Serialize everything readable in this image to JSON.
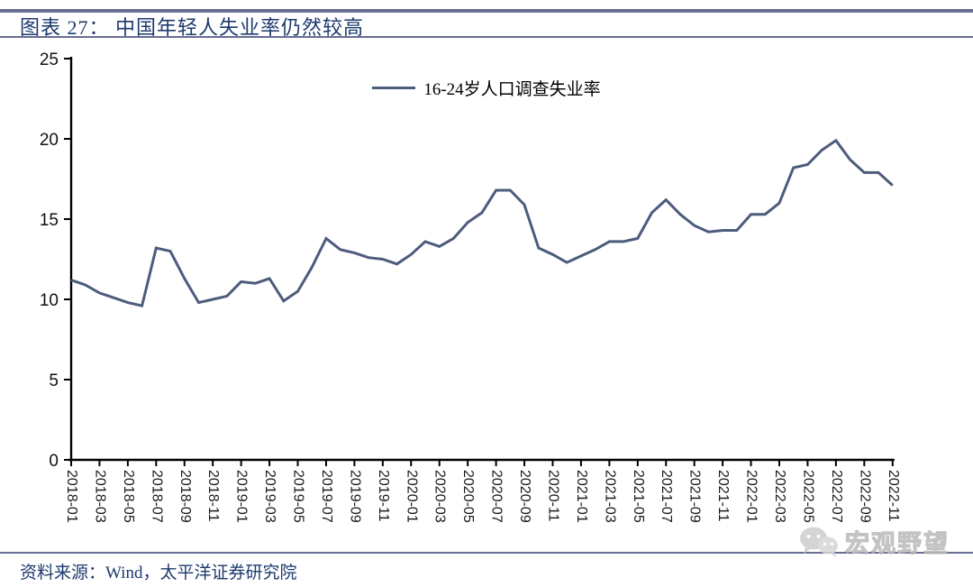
{
  "header": {
    "title": "图表 27： 中国年轻人失业率仍然较高"
  },
  "footer": {
    "source": "资料来源：Wind，太平洋证券研究院"
  },
  "watermark": {
    "icon": "wechat-icon",
    "text": "宏观野望"
  },
  "colors": {
    "title": "#1d3a6d",
    "line": "#4d5b7d",
    "rule": "#686e94",
    "axis": "#000000",
    "tick_label": "#111111",
    "watermark": "#c6c6c6"
  },
  "chart_data": {
    "type": "line",
    "title": "图表 27： 中国年轻人失业率仍然较高",
    "xlabel": "",
    "ylabel": "",
    "ylim": [
      0,
      25
    ],
    "yticks": [
      0,
      5,
      10,
      15,
      20,
      25
    ],
    "xtick_every": 2,
    "grid": false,
    "legend_position": "top-center",
    "x": [
      "2018-01",
      "2018-02",
      "2018-03",
      "2018-04",
      "2018-05",
      "2018-06",
      "2018-07",
      "2018-08",
      "2018-09",
      "2018-10",
      "2018-11",
      "2018-12",
      "2019-01",
      "2019-02",
      "2019-03",
      "2019-04",
      "2019-05",
      "2019-06",
      "2019-07",
      "2019-08",
      "2019-09",
      "2019-10",
      "2019-11",
      "2019-12",
      "2020-01",
      "2020-02",
      "2020-03",
      "2020-04",
      "2020-05",
      "2020-06",
      "2020-07",
      "2020-08",
      "2020-09",
      "2020-10",
      "2020-11",
      "2020-12",
      "2021-01",
      "2021-02",
      "2021-03",
      "2021-04",
      "2021-05",
      "2021-06",
      "2021-07",
      "2021-08",
      "2021-09",
      "2021-10",
      "2021-11",
      "2021-12",
      "2022-01",
      "2022-02",
      "2022-03",
      "2022-04",
      "2022-05",
      "2022-06",
      "2022-07",
      "2022-08",
      "2022-09",
      "2022-10",
      "2022-11"
    ],
    "series": [
      {
        "name": "16-24岁人口调查失业率",
        "values": [
          11.2,
          10.9,
          10.4,
          10.1,
          9.8,
          9.6,
          13.2,
          13.0,
          11.3,
          9.8,
          10.0,
          10.2,
          11.1,
          11.0,
          11.3,
          9.9,
          10.5,
          12.0,
          13.8,
          13.1,
          12.9,
          12.6,
          12.5,
          12.2,
          12.8,
          13.6,
          13.3,
          13.8,
          14.8,
          15.4,
          16.8,
          16.8,
          15.9,
          13.2,
          12.8,
          12.3,
          12.7,
          13.1,
          13.6,
          13.6,
          13.8,
          15.4,
          16.2,
          15.3,
          14.6,
          14.2,
          14.3,
          14.3,
          15.3,
          15.3,
          16.0,
          18.2,
          18.4,
          19.3,
          19.9,
          18.7,
          17.9,
          17.9,
          17.1
        ]
      }
    ]
  }
}
